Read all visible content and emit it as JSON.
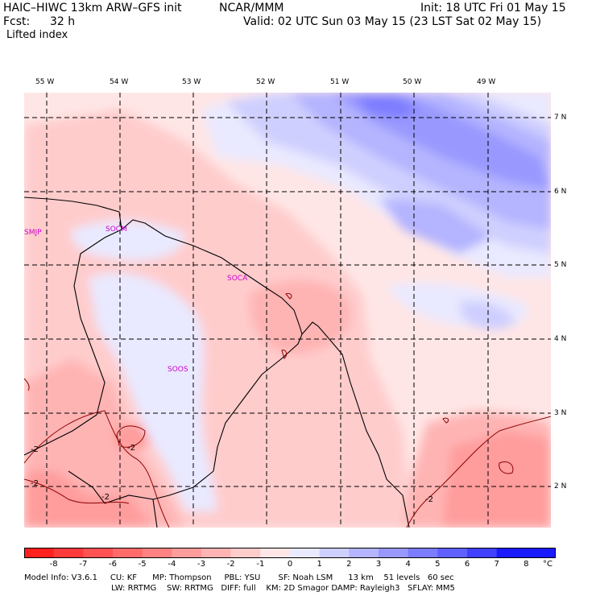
{
  "header": {
    "model": "HAIC–HIWC 13km ARW–GFS init",
    "org": "NCAR/MMM",
    "init": "Init: 18 UTC Fri 01 May 15",
    "fcst_label": "Fcst:",
    "fcst_value": "32 h",
    "valid": "Valid: 02 UTC Sun 03 May 15 (23 LST Sat 02 May 15)",
    "field": "Lifted index"
  },
  "map": {
    "lon_labels": [
      "55 W",
      "54 W",
      "53 W",
      "52 W",
      "51 W",
      "50 W",
      "49 W"
    ],
    "lat_labels": [
      "7 N",
      "6 N",
      "5 N",
      "4 N",
      "3 N",
      "2 N"
    ],
    "stations": [
      "SMJP",
      "SOCM",
      "SOCA",
      "SOOS"
    ],
    "contour_labels": [
      "-2",
      "-2",
      "-2",
      "-2",
      "-2"
    ]
  },
  "colorbar": {
    "labels": [
      "-8",
      "-7",
      "-6",
      "-5",
      "-4",
      "-3",
      "-2",
      "-1",
      "0",
      "1",
      "2",
      "3",
      "4",
      "5",
      "6",
      "7",
      "8"
    ],
    "unit": "°C",
    "colors": [
      "#ff2020",
      "#ff3a3a",
      "#ff5252",
      "#ff6a6a",
      "#ff8282",
      "#ff9c9c",
      "#ffb4b4",
      "#ffcccc",
      "#ffe6e6",
      "#e9e9ff",
      "#cfcfff",
      "#b4b4ff",
      "#9898ff",
      "#7c7cff",
      "#6060ff",
      "#4040ff",
      "#1a1aff"
    ]
  },
  "footer": {
    "line1": "Model Info: V3.6.1     CU: KF      MP: Thompson     PBL: YSU       SF: Noah LSM      13 km    51 levels   60 sec",
    "line2": "                                  LW: RRTMG    SW: RRTMG   DIFF: full    KM: 2D Smagor DAMP: Rayleigh3   SFLAY: MM5"
  }
}
